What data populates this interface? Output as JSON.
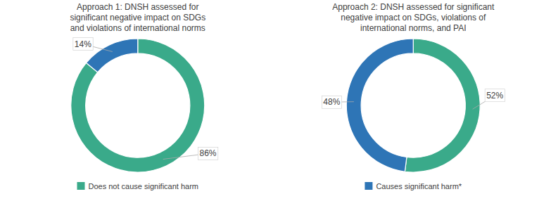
{
  "chart_data": [
    {
      "type": "donut",
      "title": "Approach 1: DNSH assessed for\nsignificant negative impact on SDGs\nand violations of international norms",
      "categories": [
        "Does not cause significant harm",
        null
      ],
      "values": [
        86,
        14
      ],
      "value_labels": [
        "86%",
        "14%"
      ],
      "colors": [
        "#3aaa8a",
        "#2e75b6"
      ],
      "data_labels": true,
      "legend": "bottom"
    },
    {
      "type": "donut",
      "title": "Approach 2: DNSH assessed for significant\nnegative impact on SDGs, violations of\ninternational norms, and PAI",
      "categories": [
        null,
        "Causes significant harm*"
      ],
      "values": [
        52,
        48
      ],
      "value_labels": [
        "52%",
        "48%"
      ],
      "colors": [
        "#3aaa8a",
        "#2e75b6"
      ],
      "data_labels": true,
      "legend": "bottom"
    }
  ]
}
